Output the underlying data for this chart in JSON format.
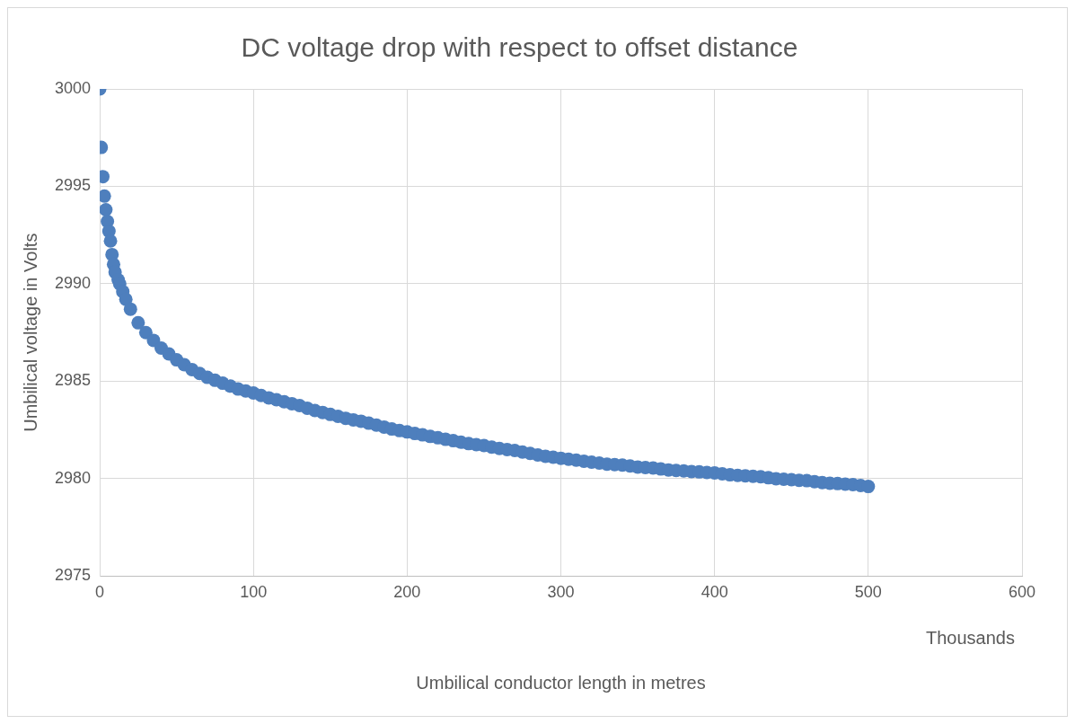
{
  "chart_data": {
    "type": "scatter",
    "title": "DC voltage drop with respect to offset distance",
    "xlabel": "Umbilical conductor length in metres",
    "ylabel": "Umbilical voltage in Volts",
    "annotations": [
      "Thousands"
    ],
    "x": [
      0,
      1,
      2,
      3,
      4,
      5,
      6,
      7,
      8,
      9,
      10,
      12,
      13,
      15,
      17,
      20,
      25,
      30,
      35,
      40,
      45,
      50,
      55,
      60,
      65,
      70,
      75,
      80,
      85,
      90,
      95,
      100,
      105,
      110,
      115,
      120,
      125,
      130,
      135,
      140,
      145,
      150,
      155,
      160,
      165,
      170,
      175,
      180,
      185,
      190,
      195,
      200,
      205,
      210,
      215,
      220,
      225,
      230,
      235,
      240,
      245,
      250,
      255,
      260,
      265,
      270,
      275,
      280,
      285,
      290,
      295,
      300,
      305,
      310,
      315,
      320,
      325,
      330,
      335,
      340,
      345,
      350,
      355,
      360,
      365,
      370,
      375,
      380,
      385,
      390,
      395,
      400,
      405,
      410,
      415,
      420,
      425,
      430,
      435,
      440,
      445,
      450,
      455,
      460,
      465,
      470,
      475,
      480,
      485,
      490,
      495,
      500
    ],
    "series": [
      {
        "color": "#4e7fbd",
        "values": [
          3000,
          2997,
          2995.5,
          2994.5,
          2993.8,
          2993.2,
          2992.7,
          2992.2,
          2991.5,
          2991,
          2990.6,
          2990.2,
          2990,
          2989.6,
          2989.2,
          2988.7,
          2988,
          2987.5,
          2987.1,
          2986.7,
          2986.4,
          2986.1,
          2985.85,
          2985.6,
          2985.4,
          2985.2,
          2985.05,
          2984.9,
          2984.75,
          2984.6,
          2984.5,
          2984.4,
          2984.27,
          2984.15,
          2984.05,
          2983.95,
          2983.85,
          2983.75,
          2983.62,
          2983.5,
          2983.4,
          2983.3,
          2983.2,
          2983.1,
          2983.02,
          2982.95,
          2982.85,
          2982.75,
          2982.65,
          2982.55,
          2982.47,
          2982.4,
          2982.32,
          2982.25,
          2982.17,
          2982.1,
          2982.02,
          2981.95,
          2981.87,
          2981.8,
          2981.75,
          2981.7,
          2981.62,
          2981.55,
          2981.5,
          2981.45,
          2981.37,
          2981.3,
          2981.22,
          2981.15,
          2981.1,
          2981.05,
          2981,
          2980.95,
          2980.9,
          2980.85,
          2980.8,
          2980.75,
          2980.72,
          2980.7,
          2980.65,
          2980.6,
          2980.57,
          2980.55,
          2980.5,
          2980.45,
          2980.42,
          2980.4,
          2980.37,
          2980.35,
          2980.32,
          2980.3,
          2980.25,
          2980.2,
          2980.17,
          2980.15,
          2980.12,
          2980.1,
          2980.05,
          2980,
          2979.97,
          2979.95,
          2979.92,
          2979.9,
          2979.85,
          2979.8,
          2979.77,
          2979.75,
          2979.72,
          2979.7,
          2979.65,
          2979.6
        ]
      }
    ],
    "xlim": [
      0,
      600
    ],
    "xticks": [
      0,
      100,
      200,
      300,
      400,
      500,
      600
    ],
    "ylim": [
      2975,
      3000
    ],
    "yticks": [
      2975,
      2980,
      2985,
      2990,
      2995,
      3000
    ],
    "grid": true,
    "legend": false,
    "marker": "circle"
  }
}
